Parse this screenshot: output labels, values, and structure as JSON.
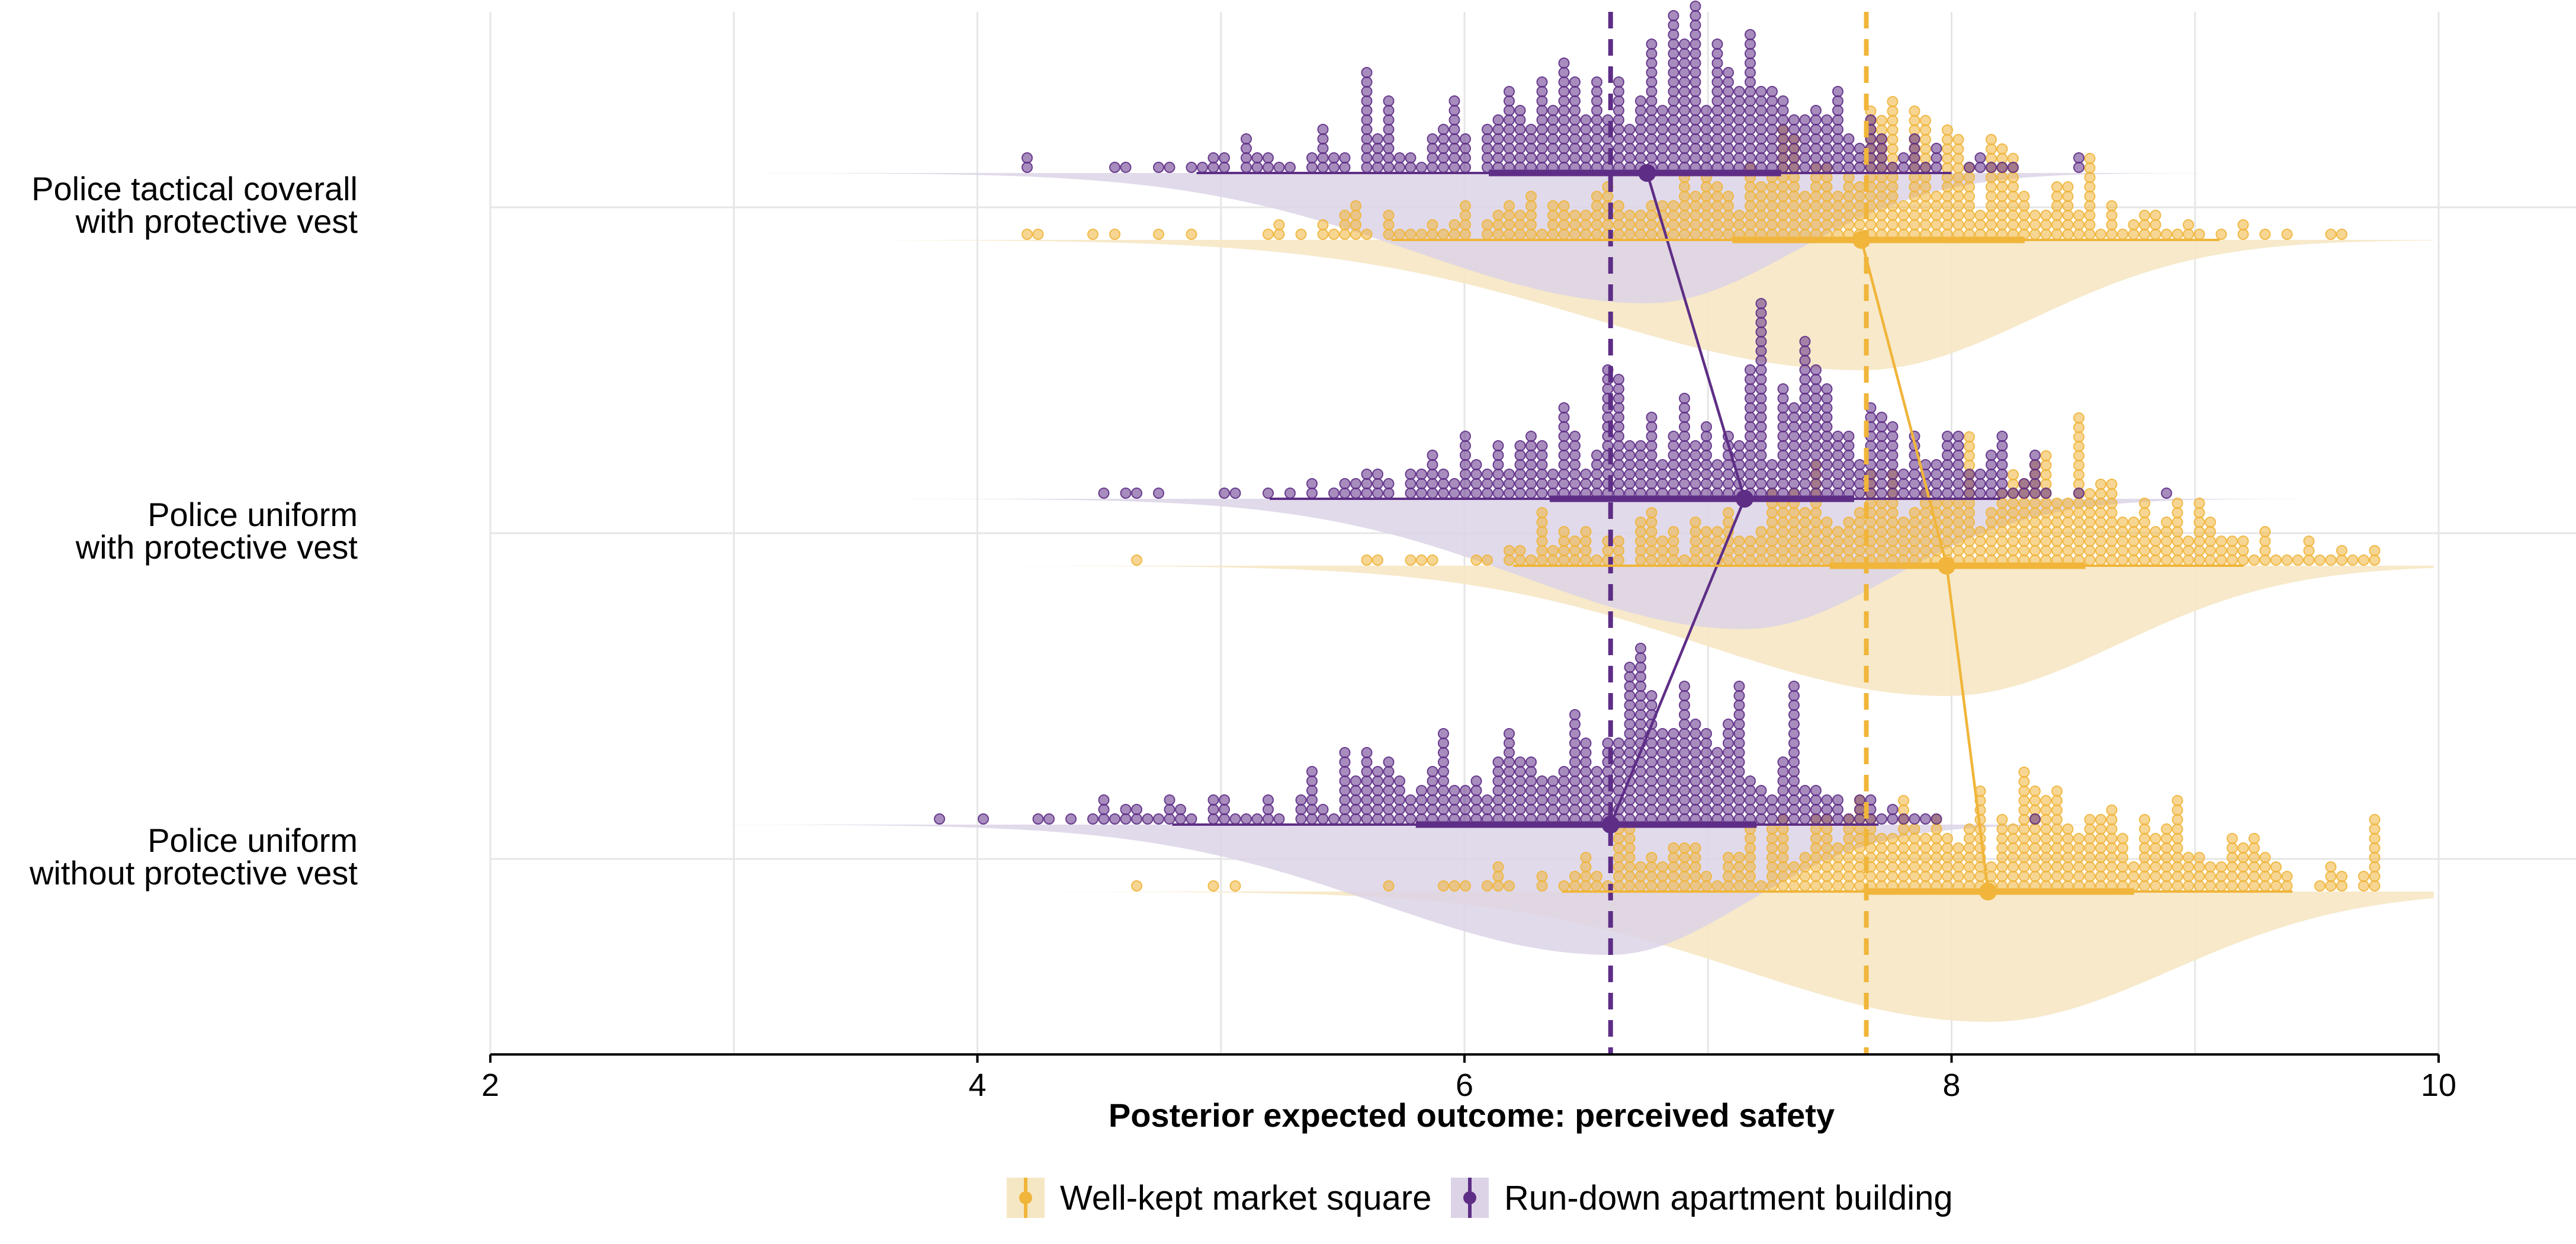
{
  "chart_data": {
    "type": "halfeye-dotplot",
    "xlabel": "Posterior expected outcome: perceived safety",
    "xlim": [
      2,
      10
    ],
    "x_ticks": [
      "2",
      "4",
      "6",
      "8",
      "10"
    ],
    "grid": true,
    "legend_position": "bottom",
    "categories": [
      {
        "lines": [
          "Police tactical coverall",
          "with protective vest"
        ]
      },
      {
        "lines": [
          "Police uniform",
          "with protective vest"
        ]
      },
      {
        "lines": [
          "Police uniform",
          "without protective vest"
        ]
      }
    ],
    "reference_lines": [
      {
        "series": "Run-down apartment building",
        "x": 6.6
      },
      {
        "series": "Well-kept market square",
        "x": 7.65
      }
    ],
    "series": [
      {
        "name": "Well-kept market square",
        "color": "#F0B53A",
        "fill": "#F6E7C4",
        "point": [
          7.63,
          7.98,
          8.15
        ],
        "interval_66": [
          [
            7.1,
            8.3
          ],
          [
            7.5,
            8.55
          ],
          [
            7.65,
            8.75
          ]
        ],
        "interval_95": [
          [
            5.7,
            9.1
          ],
          [
            6.2,
            9.2
          ],
          [
            6.4,
            9.4
          ]
        ],
        "spread_left": [
          1.1,
          1.0,
          1.0
        ],
        "spread_right": [
          0.7,
          0.7,
          0.75
        ]
      },
      {
        "name": "Run-down apartment building",
        "color": "#5E2E86",
        "fill": "#DCD3E6",
        "point": [
          6.75,
          7.15,
          6.6
        ],
        "interval_66": [
          [
            6.1,
            7.3
          ],
          [
            6.35,
            7.6
          ],
          [
            5.8,
            7.2
          ]
        ],
        "interval_95": [
          [
            4.9,
            8.0
          ],
          [
            5.2,
            8.2
          ],
          [
            4.8,
            7.7
          ]
        ],
        "spread_left": [
          0.95,
          0.9,
          0.95
        ],
        "spread_right": [
          0.6,
          0.6,
          0.55
        ]
      }
    ]
  }
}
